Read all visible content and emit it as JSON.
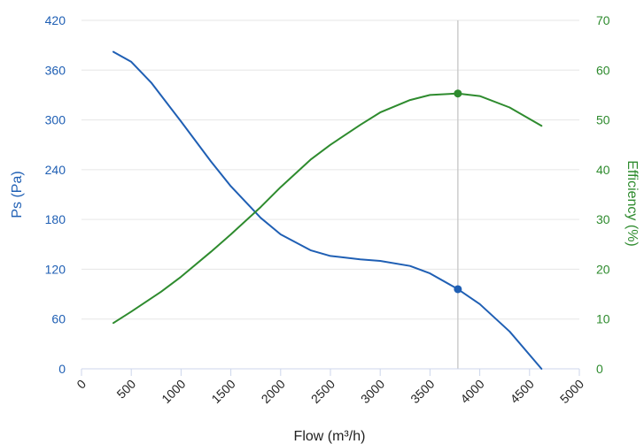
{
  "chart_data": {
    "type": "line",
    "xlabel": "Flow (m³/h)",
    "ylabel_left": "Ps (Pa)",
    "ylabel_right": "Efficiency (%)",
    "xlim": [
      0,
      5000
    ],
    "ylim_left": [
      0,
      420
    ],
    "ylim_right": [
      0,
      70
    ],
    "x_ticks": [
      0,
      500,
      1000,
      1500,
      2000,
      2500,
      3000,
      3500,
      4000,
      4500,
      5000
    ],
    "y_left_ticks": [
      0,
      60,
      120,
      180,
      240,
      300,
      360,
      420
    ],
    "y_right_ticks": [
      0,
      10,
      20,
      30,
      40,
      50,
      60,
      70
    ],
    "grid": true,
    "colors": {
      "ps": "#1f5fb4",
      "efficiency": "#2e8b2e",
      "cursor": "#cccccc"
    },
    "series": [
      {
        "key": "ps",
        "axis": "left",
        "x": [
          320,
          500,
          700,
          1000,
          1300,
          1500,
          1800,
          2000,
          2300,
          2500,
          2800,
          3000,
          3300,
          3500,
          3780,
          4000,
          4300,
          4620
        ],
        "y": [
          382,
          370,
          345,
          298,
          250,
          220,
          182,
          162,
          143,
          136,
          132,
          130,
          124,
          115,
          96,
          78,
          45,
          0
        ]
      },
      {
        "key": "efficiency",
        "axis": "right",
        "x": [
          320,
          500,
          800,
          1000,
          1300,
          1500,
          1800,
          2000,
          2300,
          2500,
          2800,
          3000,
          3300,
          3500,
          3780,
          4000,
          4300,
          4620
        ],
        "y": [
          9.2,
          11.5,
          15.5,
          18.5,
          23.5,
          27.0,
          32.5,
          36.5,
          42.0,
          45.0,
          49.0,
          51.5,
          54.0,
          55.0,
          55.3,
          54.8,
          52.5,
          48.8
        ]
      }
    ],
    "cursor": {
      "x": 3780,
      "ps": 96,
      "efficiency": 55.3
    }
  }
}
